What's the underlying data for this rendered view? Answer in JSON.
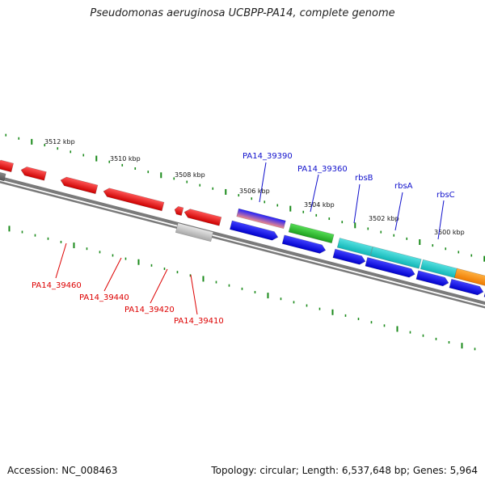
{
  "title": "Pseudomonas aeruginosa UCBPP-PA14, complete genome",
  "footer": {
    "accession": "Accession: NC_008463",
    "summary": "Topology: circular; Length: 6,537,648 bp; Genes: 5,964"
  },
  "colors": {
    "backbone": "#7a7a7a",
    "tick": "#1a8a1a",
    "forward_label": "#1010cc",
    "reverse_label": "#dd0000"
  },
  "scale_labels": [
    "3512 kbp",
    "3510 kbp",
    "3508 kbp",
    "3506 kbp",
    "3504 kbp",
    "3502 kbp",
    "3500 kbp"
  ],
  "gene_labels_top": [
    "PA14_39390",
    "PA14_39360",
    "rbsB",
    "rbsA",
    "rbsC"
  ],
  "gene_labels_bottom": [
    "PA14_39460",
    "PA14_39440",
    "PA14_39420",
    "PA14_39410"
  ]
}
